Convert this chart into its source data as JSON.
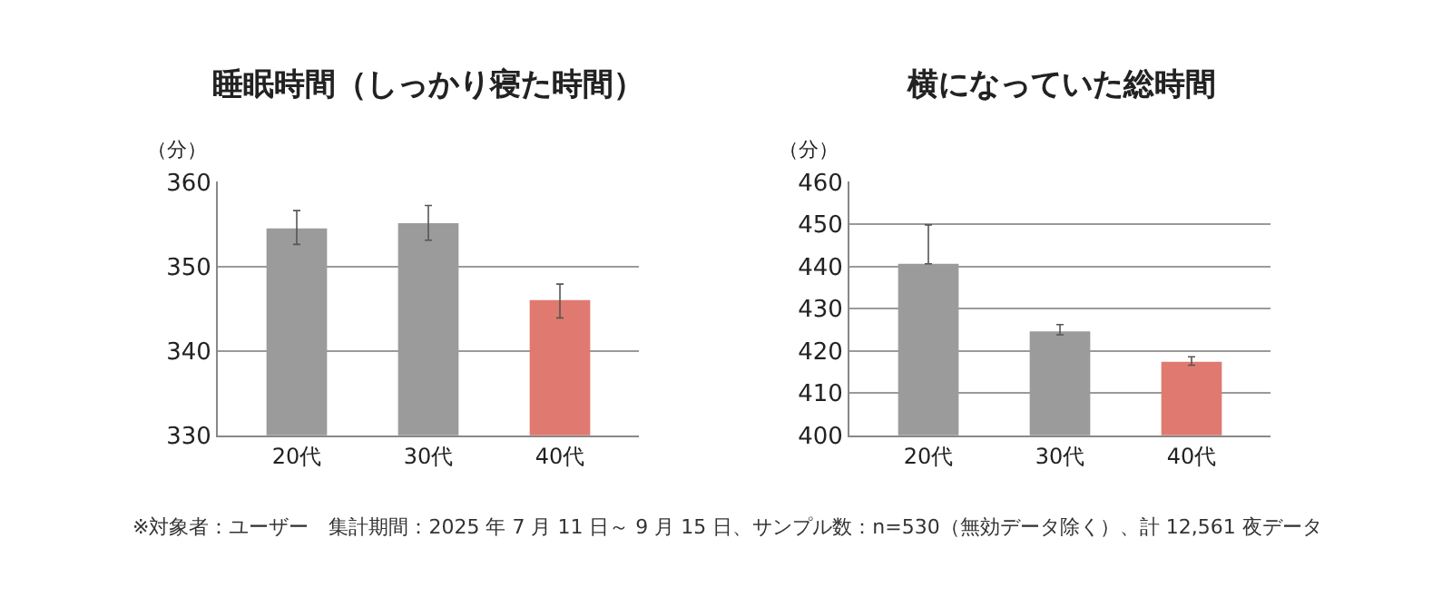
{
  "chart_data": [
    {
      "type": "bar",
      "title": "睡眠時間（しっかり寝た時間）",
      "ylabel": "（分）",
      "categories": [
        "20代",
        "30代",
        "40代"
      ],
      "values": [
        354.5,
        355.1,
        346.0
      ],
      "colors": [
        "#9b9b9b",
        "#9b9b9b",
        "#e07a70"
      ],
      "errors": [
        [
          352.6,
          356.6
        ],
        [
          353.1,
          357.2
        ],
        [
          343.9,
          347.9
        ]
      ],
      "ylim": [
        330,
        360
      ],
      "yticks": [
        330,
        340,
        350,
        360
      ],
      "grid": "y",
      "annotations": [
        "※対象者：ユーザー　集計期間：2025 年 7 月 11 日～ 9 月 15 日、サンプル数：n=530（無効データ除く）、計 12,561 夜データ"
      ]
    },
    {
      "type": "bar",
      "title": "横になっていた総時間",
      "ylabel": "（分）",
      "categories": [
        "20代",
        "30代",
        "40代"
      ],
      "values": [
        440.6,
        424.6,
        417.4
      ],
      "colors": [
        "#9b9b9b",
        "#9b9b9b",
        "#e07a70"
      ],
      "errors": [
        [
          440.6,
          449.8
        ],
        [
          423.8,
          426.2
        ],
        [
          416.6,
          418.6
        ]
      ],
      "ylim": [
        400,
        460
      ],
      "yticks": [
        400,
        410,
        420,
        430,
        440,
        450,
        460
      ],
      "grid": "y"
    }
  ]
}
